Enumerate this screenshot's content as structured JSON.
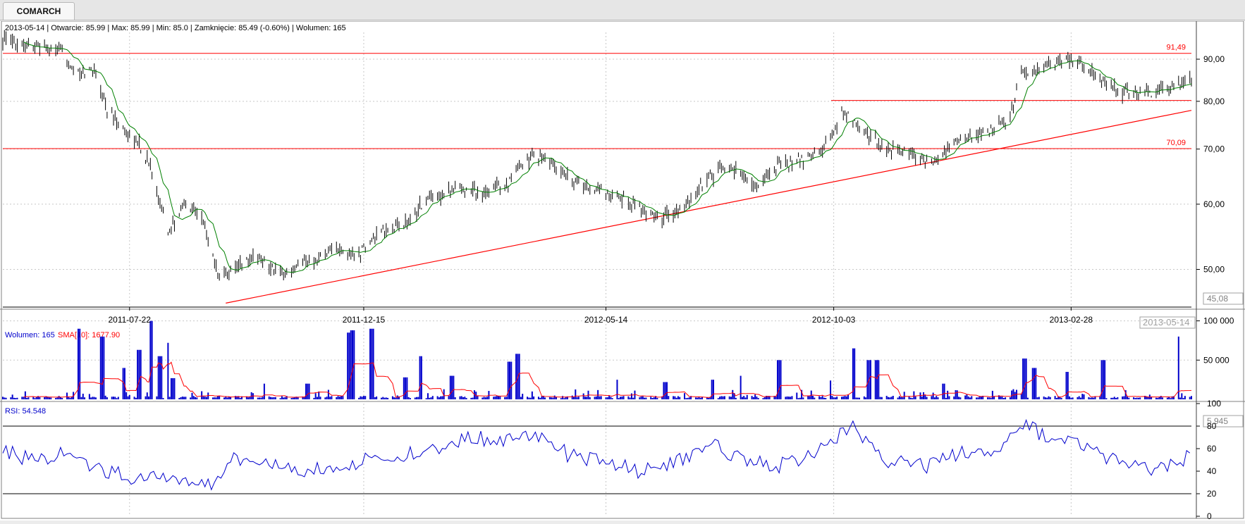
{
  "tab": {
    "label": "COMARCH"
  },
  "price_panel": {
    "info": "2013-05-14 | Otwarcie: 85.99 | Max: 85.99 | Min: 85.0 | Zamknięcie: 85.49 (-0.60%)  | Wolumen: 165",
    "current_label": "45,08",
    "last_date_label": "2013-05-14"
  },
  "volume_panel": {
    "label_wolumen": "Wolumen: 165",
    "label_sma": "SMA[10]: 1677.90",
    "current_label": "5 945"
  },
  "rsi_panel": {
    "label": "RSI: 54.548"
  },
  "colors": {
    "candle": "#000000",
    "sma_price": "#008000",
    "levels": "#ff0000",
    "volume": "#0000cc",
    "sma_volume": "#ff0000",
    "rsi": "#0000cc"
  },
  "chart_data": [
    {
      "type": "ohlc",
      "x_dates": [
        "2011-07-22",
        "2011-12-15",
        "2012-05-14",
        "2012-10-03",
        "2013-02-28"
      ],
      "y_ticks": [
        50,
        60,
        70,
        80,
        90
      ],
      "y_tick_labels": [
        "50,00",
        "60,00",
        "70,00",
        "80,00",
        "90,00"
      ],
      "ylim": [
        45,
        97
      ],
      "horizontal_levels": [
        {
          "value": 91.49,
          "label": "91,49"
        },
        {
          "value": 70.09,
          "label": "70,09"
        },
        {
          "value": 80.2,
          "label": ""
        }
      ],
      "trendline": [
        {
          "date": "2011-09-20",
          "value": 45.5
        },
        {
          "date": "2013-05-14",
          "value": 78.0
        }
      ],
      "close_series": [
        [
          "2011-05-04",
          95.0
        ],
        [
          "2011-05-25",
          93.0
        ],
        [
          "2011-06-10",
          92.0
        ],
        [
          "2011-06-20",
          86.0
        ],
        [
          "2011-06-30",
          88.0
        ],
        [
          "2011-07-08",
          78.0
        ],
        [
          "2011-07-18",
          74.0
        ],
        [
          "2011-07-28",
          71.0
        ],
        [
          "2011-08-05",
          66.0
        ],
        [
          "2011-08-15",
          55.0
        ],
        [
          "2011-08-25",
          60.0
        ],
        [
          "2011-09-05",
          58.0
        ],
        [
          "2011-09-15",
          49.5
        ],
        [
          "2011-09-25",
          50.0
        ],
        [
          "2011-10-10",
          52.0
        ],
        [
          "2011-10-25",
          49.0
        ],
        [
          "2011-11-10",
          51.0
        ],
        [
          "2011-11-25",
          53.0
        ],
        [
          "2011-12-10",
          52.0
        ],
        [
          "2011-12-25",
          55.0
        ],
        [
          "2012-01-10",
          57.0
        ],
        [
          "2012-01-25",
          61.0
        ],
        [
          "2012-02-10",
          63.0
        ],
        [
          "2012-02-28",
          62.0
        ],
        [
          "2012-03-15",
          64.0
        ],
        [
          "2012-03-30",
          69.0
        ],
        [
          "2012-04-15",
          66.0
        ],
        [
          "2012-04-30",
          63.0
        ],
        [
          "2012-05-14",
          62.0
        ],
        [
          "2012-05-30",
          60.0
        ],
        [
          "2012-06-15",
          58.0
        ],
        [
          "2012-06-30",
          59.0
        ],
        [
          "2012-07-15",
          64.0
        ],
        [
          "2012-07-30",
          67.0
        ],
        [
          "2012-08-15",
          63.0
        ],
        [
          "2012-08-30",
          67.0
        ],
        [
          "2012-09-15",
          68.0
        ],
        [
          "2012-09-30",
          71.0
        ],
        [
          "2012-10-08",
          78.0
        ],
        [
          "2012-10-20",
          74.0
        ],
        [
          "2012-11-05",
          70.0
        ],
        [
          "2012-11-20",
          69.0
        ],
        [
          "2012-12-05",
          67.5
        ],
        [
          "2012-12-20",
          72.0
        ],
        [
          "2013-01-05",
          73.0
        ],
        [
          "2013-01-20",
          76.0
        ],
        [
          "2013-01-28",
          86.0
        ],
        [
          "2013-02-10",
          88.0
        ],
        [
          "2013-02-28",
          90.0
        ],
        [
          "2013-03-15",
          86.0
        ],
        [
          "2013-03-30",
          82.0
        ],
        [
          "2013-04-15",
          82.0
        ],
        [
          "2013-04-30",
          83.0
        ],
        [
          "2013-05-14",
          85.49
        ]
      ]
    },
    {
      "type": "bar",
      "title": "Wolumen",
      "y_ticks": [
        50000,
        100000
      ],
      "y_tick_labels": [
        "50 000",
        "100 000"
      ],
      "ylim": [
        0,
        105000
      ],
      "spikes": [
        [
          "2011-06-20",
          90000
        ],
        [
          "2011-07-05",
          80000
        ],
        [
          "2011-07-18",
          40000
        ],
        [
          "2011-07-28",
          63000
        ],
        [
          "2011-08-05",
          100000
        ],
        [
          "2011-08-10",
          55000
        ],
        [
          "2011-08-14",
          72000
        ],
        [
          "2011-08-18",
          27000
        ],
        [
          "2011-10-15",
          20000
        ],
        [
          "2011-11-10",
          20000
        ],
        [
          "2011-12-05",
          85000
        ],
        [
          "2011-12-08",
          88000
        ],
        [
          "2011-12-20",
          90000
        ],
        [
          "2012-01-10",
          28000
        ],
        [
          "2012-01-20",
          55000
        ],
        [
          "2012-02-08",
          30000
        ],
        [
          "2012-03-15",
          48000
        ],
        [
          "2012-03-20",
          58000
        ],
        [
          "2012-05-20",
          25000
        ],
        [
          "2012-06-20",
          22000
        ],
        [
          "2012-07-20",
          25000
        ],
        [
          "2012-08-05",
          30000
        ],
        [
          "2012-08-30",
          50000
        ],
        [
          "2012-09-30",
          24000
        ],
        [
          "2012-10-15",
          65000
        ],
        [
          "2012-10-25",
          50000
        ],
        [
          "2012-10-30",
          50000
        ],
        [
          "2012-12-10",
          20000
        ],
        [
          "2013-01-30",
          52000
        ],
        [
          "2013-02-05",
          40000
        ],
        [
          "2013-02-25",
          35000
        ],
        [
          "2013-03-20",
          50000
        ],
        [
          "2013-05-05",
          80000
        ]
      ]
    },
    {
      "type": "line",
      "title": "RSI",
      "y_ticks": [
        0,
        20,
        40,
        60,
        80,
        100
      ],
      "y_tick_labels": [
        "0",
        "20",
        "40",
        "60",
        "80",
        "100"
      ],
      "ylim": [
        0,
        100
      ],
      "reference_lines": [
        20,
        80
      ],
      "series": [
        [
          "2011-05-04",
          60
        ],
        [
          "2011-05-20",
          50
        ],
        [
          "2011-06-10",
          55
        ],
        [
          "2011-06-25",
          45
        ],
        [
          "2011-07-10",
          40
        ],
        [
          "2011-07-22",
          35
        ],
        [
          "2011-08-05",
          38
        ],
        [
          "2011-08-20",
          30
        ],
        [
          "2011-09-10",
          28
        ],
        [
          "2011-09-25",
          50
        ],
        [
          "2011-10-15",
          45
        ],
        [
          "2011-11-05",
          40
        ],
        [
          "2011-11-25",
          42
        ],
        [
          "2011-12-15",
          50
        ],
        [
          "2012-01-10",
          55
        ],
        [
          "2012-01-30",
          58
        ],
        [
          "2012-02-20",
          72
        ],
        [
          "2012-03-10",
          65
        ],
        [
          "2012-03-30",
          75
        ],
        [
          "2012-04-20",
          55
        ],
        [
          "2012-05-14",
          48
        ],
        [
          "2012-06-05",
          40
        ],
        [
          "2012-06-25",
          48
        ],
        [
          "2012-07-20",
          62
        ],
        [
          "2012-08-10",
          50
        ],
        [
          "2012-08-30",
          45
        ],
        [
          "2012-09-20",
          55
        ],
        [
          "2012-10-03",
          70
        ],
        [
          "2012-10-15",
          80
        ],
        [
          "2012-11-05",
          50
        ],
        [
          "2012-12-01",
          45
        ],
        [
          "2012-12-25",
          58
        ],
        [
          "2013-01-15",
          55
        ],
        [
          "2013-01-28",
          82
        ],
        [
          "2013-02-15",
          70
        ],
        [
          "2013-03-05",
          66
        ],
        [
          "2013-03-25",
          50
        ],
        [
          "2013-04-15",
          42
        ],
        [
          "2013-05-05",
          48
        ],
        [
          "2013-05-14",
          55
        ]
      ]
    }
  ]
}
